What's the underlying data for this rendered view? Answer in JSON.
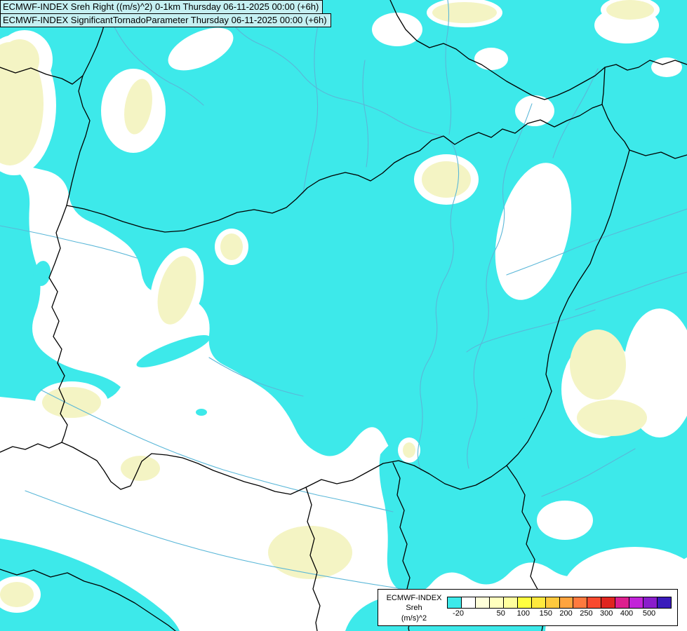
{
  "header": {
    "line1": "ECMWF-INDEX Sreh Right ((m/s)^2) 0-1km Thursday 06-11-2025 00:00 (+6h)",
    "line2": "ECMWF-INDEX SignificantTornadoParameter Thursday 06-11-2025 00:00 (+6h)"
  },
  "legend": {
    "title_line1": "ECMWF-INDEX",
    "title_line2": "Sreh",
    "title_line3": "(m/s)^2",
    "tick_labels": [
      "-20",
      "50",
      "100",
      "150",
      "200",
      "250",
      "300",
      "400",
      "500"
    ],
    "tick_positions": [
      0.05,
      0.24,
      0.34,
      0.44,
      0.53,
      0.62,
      0.71,
      0.8,
      0.9
    ],
    "colors": [
      "#3de9ea",
      "#ffffff",
      "#ffffda",
      "#ffffbe",
      "#ffff9e",
      "#ffff40",
      "#ffe93e",
      "#ffc93e",
      "#ffa43e",
      "#ff7a3e",
      "#f94a2e",
      "#e0251f",
      "#dd1f8e",
      "#c224d8",
      "#8a1dcb",
      "#3a1bbb"
    ]
  },
  "map": {
    "region": "Hungary and surrounding countries",
    "shading_levels": {
      "cyan": "Sreh below -20 / weak values",
      "pale_yellow": "Sreh 50-150 band"
    },
    "colors": {
      "cyan": "#3de9ea",
      "yellow": "#f4f4c4",
      "river": "#5ab7d8",
      "border": "#000000",
      "land": "#ffffff",
      "headerbg": "#c5f0f2"
    }
  }
}
